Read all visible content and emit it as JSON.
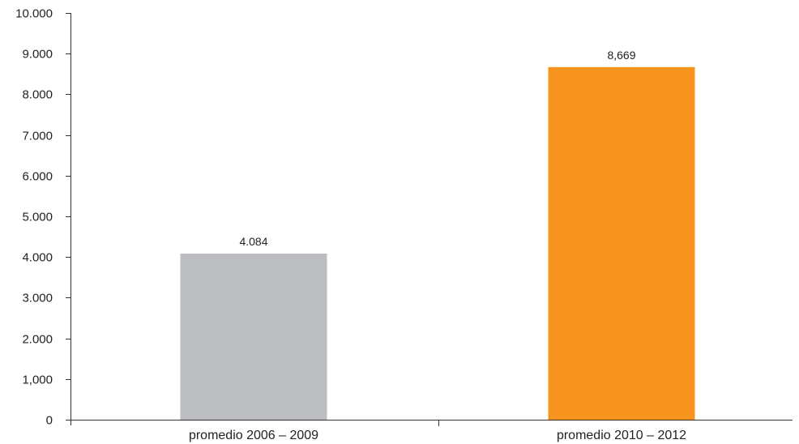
{
  "chart_data": {
    "type": "bar",
    "title": "",
    "xlabel": "",
    "ylabel": "",
    "ylim": [
      0,
      10000
    ],
    "grid": false,
    "legend": "none",
    "categories": [
      "promedio 2006 – 2009",
      "promedio 2010 – 2012"
    ],
    "values": [
      4084,
      8669
    ],
    "data_labels": [
      "4.084",
      "8,669"
    ],
    "bar_colors": [
      "#bcbdc0",
      "#f7941d"
    ],
    "y_ticks": [
      0,
      1000,
      2000,
      3000,
      4000,
      5000,
      6000,
      7000,
      8000,
      9000,
      10000
    ],
    "y_tick_labels": [
      "0",
      "1,000",
      "2.000",
      "3.000",
      "4.000",
      "5.000",
      "6.000",
      "7.000",
      "8.000",
      "9.000",
      "10.000"
    ]
  }
}
